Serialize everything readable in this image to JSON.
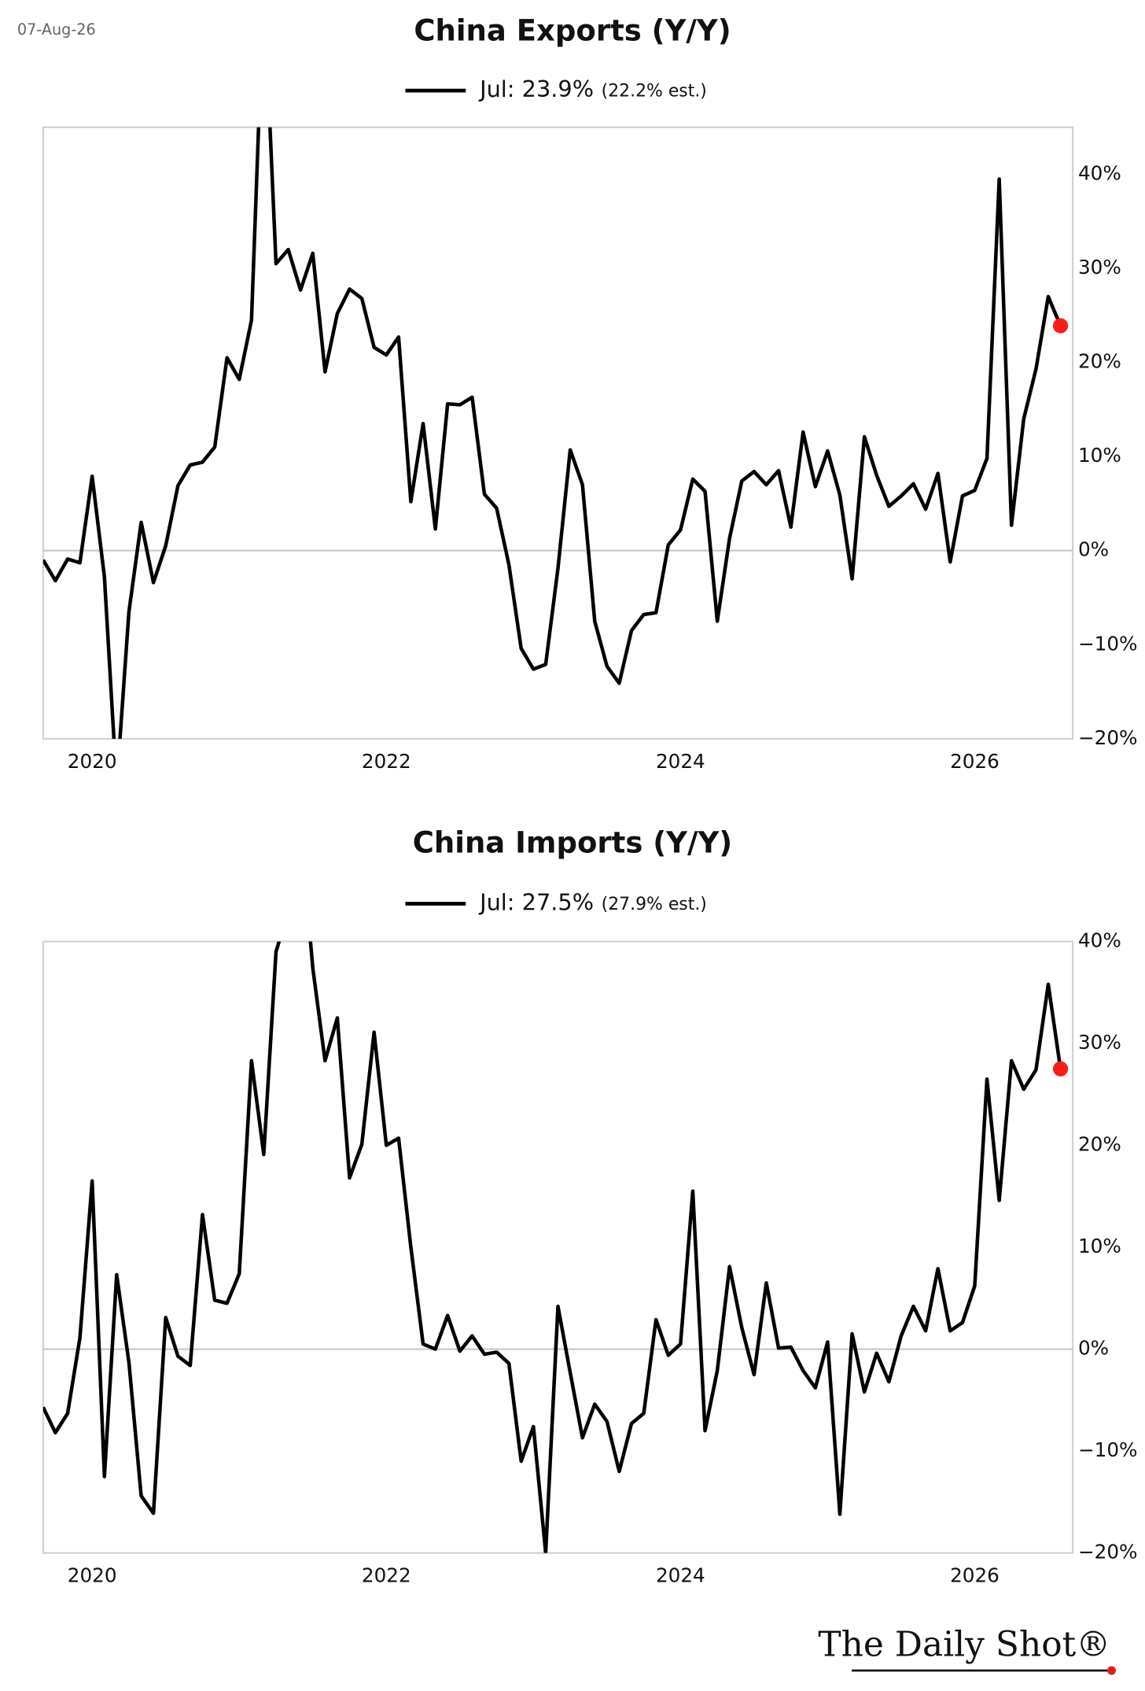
{
  "date": "07-Aug-26",
  "footer": "The Daily Shot®",
  "chart_data": [
    {
      "type": "line",
      "title": "China Exports (Y/Y)",
      "estimate_label": "(22.2% est.)",
      "last_point_color": "#ff1a1a",
      "zero_line": true,
      "y_axis_side": "right",
      "x": [
        "2019-08",
        "2019-09",
        "2019-10",
        "2019-11",
        "2019-12",
        "2020-01",
        "2020-02",
        "2020-03",
        "2020-04",
        "2020-05",
        "2020-06",
        "2020-07",
        "2020-08",
        "2020-09",
        "2020-10",
        "2020-11",
        "2020-12",
        "2021-01",
        "2021-02",
        "2021-03",
        "2021-04",
        "2021-05",
        "2021-06",
        "2021-07",
        "2021-08",
        "2021-09",
        "2021-10",
        "2021-11",
        "2021-12",
        "2022-01",
        "2022-02",
        "2022-03",
        "2022-04",
        "2022-05",
        "2022-06",
        "2022-07",
        "2022-08",
        "2022-09",
        "2022-10",
        "2022-11",
        "2022-12",
        "2023-01",
        "2023-02",
        "2023-03",
        "2023-04",
        "2023-05",
        "2023-06",
        "2023-07",
        "2023-08",
        "2023-09",
        "2023-10",
        "2023-11",
        "2023-12",
        "2024-01",
        "2024-02",
        "2024-03",
        "2024-04",
        "2024-05",
        "2024-06",
        "2024-07",
        "2024-08",
        "2024-09",
        "2024-10",
        "2024-11",
        "2024-12",
        "2025-01",
        "2025-02",
        "2025-03",
        "2025-04",
        "2025-05",
        "2025-06",
        "2025-07",
        "2025-08",
        "2025-09",
        "2025-10",
        "2025-11",
        "2025-12",
        "2026-01",
        "2026-02",
        "2026-03",
        "2026-04",
        "2026-05",
        "2026-06",
        "2026-07"
      ],
      "series": [
        {
          "name": "Jul: 23.9%",
          "color": "#000000",
          "values": [
            -1,
            -3.2,
            -0.9,
            -1.3,
            7.9,
            -2.8,
            -25,
            -6.5,
            3,
            -3.4,
            0.5,
            6.9,
            9.1,
            9.4,
            11,
            20.5,
            18.2,
            24.5,
            60,
            30.5,
            32,
            27.7,
            31.6,
            19,
            25.2,
            27.8,
            26.8,
            21.6,
            20.8,
            22.7,
            5.2,
            13.5,
            2.3,
            15.6,
            15.5,
            16.3,
            6,
            4.5,
            -1.5,
            -10.4,
            -12.6,
            -12.1,
            -1.9,
            10.7,
            7,
            -7.5,
            -12.3,
            -14.1,
            -8.5,
            -6.8,
            -6.6,
            0.6,
            2.2,
            7.6,
            6.3,
            -7.5,
            1.3,
            7.4,
            8.4,
            7,
            8.5,
            2.5,
            12.6,
            6.8,
            10.6,
            5.9,
            -3,
            12.1,
            8,
            4.7,
            5.8,
            7.1,
            4.4,
            8.2,
            -1.2,
            5.8,
            6.4,
            9.8,
            39.5,
            2.7,
            14,
            19.3,
            27,
            23.9
          ]
        }
      ],
      "xlim": [
        "2019-09",
        "2026-09"
      ],
      "xticks": [
        {
          "value": "2020-01",
          "label": "2020"
        },
        {
          "value": "2022-01",
          "label": "2022"
        },
        {
          "value": "2024-01",
          "label": "2024"
        },
        {
          "value": "2026-01",
          "label": "2026"
        }
      ],
      "ylim": [
        -20,
        45
      ],
      "yticks": [
        {
          "value": -20,
          "label": "−20%"
        },
        {
          "value": -10,
          "label": "−10%"
        },
        {
          "value": 0,
          "label": "0%"
        },
        {
          "value": 10,
          "label": "10%"
        },
        {
          "value": 20,
          "label": "20%"
        },
        {
          "value": 30,
          "label": "30%"
        },
        {
          "value": 40,
          "label": "40%"
        }
      ]
    },
    {
      "type": "line",
      "title": "China Imports (Y/Y)",
      "estimate_label": "(27.9% est.)",
      "last_point_color": "#ff1a1a",
      "zero_line": true,
      "y_axis_side": "right",
      "x": [
        "2019-08",
        "2019-09",
        "2019-10",
        "2019-11",
        "2019-12",
        "2020-01",
        "2020-02",
        "2020-03",
        "2020-04",
        "2020-05",
        "2020-06",
        "2020-07",
        "2020-08",
        "2020-09",
        "2020-10",
        "2020-11",
        "2020-12",
        "2021-01",
        "2021-02",
        "2021-03",
        "2021-04",
        "2021-05",
        "2021-06",
        "2021-07",
        "2021-08",
        "2021-09",
        "2021-10",
        "2021-11",
        "2021-12",
        "2022-01",
        "2022-02",
        "2022-03",
        "2022-04",
        "2022-05",
        "2022-06",
        "2022-07",
        "2022-08",
        "2022-09",
        "2022-10",
        "2022-11",
        "2022-12",
        "2023-01",
        "2023-02",
        "2023-03",
        "2023-04",
        "2023-05",
        "2023-06",
        "2023-07",
        "2023-08",
        "2023-09",
        "2023-10",
        "2023-11",
        "2023-12",
        "2024-01",
        "2024-02",
        "2024-03",
        "2024-04",
        "2024-05",
        "2024-06",
        "2024-07",
        "2024-08",
        "2024-09",
        "2024-10",
        "2024-11",
        "2024-12",
        "2025-01",
        "2025-02",
        "2025-03",
        "2025-04",
        "2025-05",
        "2025-06",
        "2025-07",
        "2025-08",
        "2025-09",
        "2025-10",
        "2025-11",
        "2025-12",
        "2026-01",
        "2026-02",
        "2026-03",
        "2026-04",
        "2026-05",
        "2026-06",
        "2026-07"
      ],
      "series": [
        {
          "name": "Jul: 27.5%",
          "color": "#000000",
          "values": [
            -5.7,
            -8.2,
            -6.3,
            1.1,
            16.5,
            -12.5,
            7.3,
            -1.3,
            -14.4,
            -16.1,
            3.1,
            -0.7,
            -1.6,
            13.2,
            4.8,
            4.5,
            7.4,
            28.3,
            19.1,
            39,
            43,
            51,
            37.4,
            28.3,
            32.5,
            16.8,
            20.1,
            31.1,
            20,
            20.7,
            10,
            0.5,
            0,
            3.3,
            -0.2,
            1.3,
            -0.5,
            -0.3,
            -1.4,
            -11,
            -7.6,
            -20,
            4.2,
            -2.3,
            -8.7,
            -5.4,
            -7.1,
            -12,
            -7.3,
            -6.3,
            2.9,
            -0.6,
            0.5,
            15.5,
            -8,
            -2.1,
            8.1,
            2.1,
            -2.5,
            6.5,
            0.1,
            0.2,
            -2.1,
            -3.8,
            0.7,
            -16.2,
            1.5,
            -4.2,
            -0.4,
            -3.2,
            1.3,
            4.2,
            1.8,
            7.9,
            1.8,
            2.6,
            6.2,
            26.5,
            14.6,
            28.3,
            25.5,
            27.4,
            35.8,
            27.5
          ]
        }
      ],
      "xlim": [
        "2019-09",
        "2026-09"
      ],
      "xticks": [
        {
          "value": "2020-01",
          "label": "2020"
        },
        {
          "value": "2022-01",
          "label": "2022"
        },
        {
          "value": "2024-01",
          "label": "2024"
        },
        {
          "value": "2026-01",
          "label": "2026"
        }
      ],
      "ylim": [
        -20,
        40
      ],
      "yticks": [
        {
          "value": -20,
          "label": "−20%"
        },
        {
          "value": -10,
          "label": "−10%"
        },
        {
          "value": 0,
          "label": "0%"
        },
        {
          "value": 10,
          "label": "10%"
        },
        {
          "value": 20,
          "label": "20%"
        },
        {
          "value": 30,
          "label": "30%"
        },
        {
          "value": 40,
          "label": "40%"
        }
      ]
    }
  ]
}
